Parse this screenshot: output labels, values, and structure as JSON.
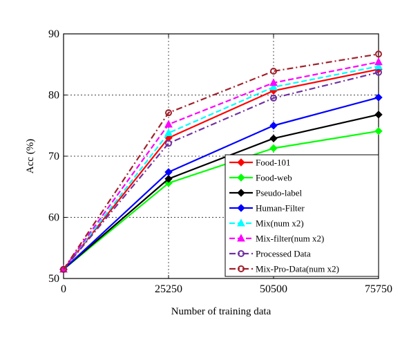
{
  "chart_data": {
    "type": "line",
    "title": "",
    "xlabel": "Number of training data",
    "ylabel": "Acc (%)",
    "x": [
      0,
      25250,
      50500,
      75750
    ],
    "x_tick_labels": [
      "0",
      "25250",
      "50500",
      "75750"
    ],
    "xlim": [
      0,
      75750
    ],
    "ylim": [
      50,
      90
    ],
    "y_ticks": [
      50,
      60,
      70,
      80,
      90
    ],
    "grid": true,
    "legend_position": "lower-right",
    "series": [
      {
        "name": "Food-101",
        "values": [
          51.5,
          73.0,
          80.7,
          84.2
        ],
        "color": "#ff0000",
        "dash": "solid",
        "marker": "diamond"
      },
      {
        "name": "Food-web",
        "values": [
          51.5,
          65.6,
          71.3,
          74.1
        ],
        "color": "#00ff00",
        "dash": "solid",
        "marker": "diamond"
      },
      {
        "name": "Pseudo-label",
        "values": [
          51.5,
          66.3,
          72.9,
          76.8
        ],
        "color": "#000000",
        "dash": "solid",
        "marker": "diamond"
      },
      {
        "name": "Human-Filter",
        "values": [
          51.5,
          67.4,
          75.0,
          79.6
        ],
        "color": "#0000ff",
        "dash": "solid",
        "marker": "diamond"
      },
      {
        "name": "Mix(num x2)",
        "values": [
          51.5,
          73.8,
          81.3,
          84.7
        ],
        "color": "#00ffff",
        "dash": "dashed",
        "marker": "triangle"
      },
      {
        "name": "Mix-filter(num x2)",
        "values": [
          51.5,
          75.2,
          82.0,
          85.4
        ],
        "color": "#ff00ff",
        "dash": "dashed",
        "marker": "triangle"
      },
      {
        "name": "Processed Data",
        "values": [
          51.5,
          72.1,
          79.5,
          83.7
        ],
        "color": "#7030a0",
        "dash": "dashdot",
        "marker": "circle"
      },
      {
        "name": "Mix-Pro-Data(num x2)",
        "values": [
          51.5,
          77.1,
          83.9,
          86.7
        ],
        "color": "#a0202a",
        "dash": "dashdot",
        "marker": "circle"
      }
    ]
  }
}
